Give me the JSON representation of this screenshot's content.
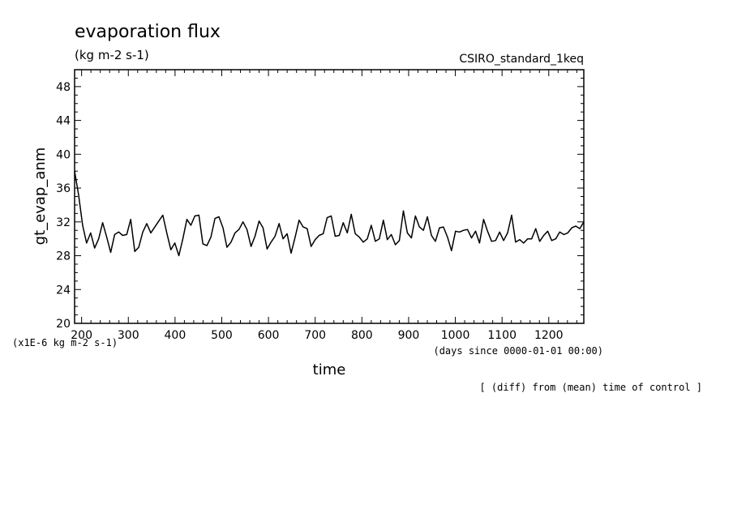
{
  "chart_data": {
    "type": "line",
    "title": "evaporation flux",
    "units": "(kg m-2 s-1)",
    "dataset": "CSIRO_standard_1keq",
    "ylabel": "gt_evap_anm",
    "xlabel": "time",
    "x_units": "(days since 0000-01-01 00:00)",
    "y_scale_note": "(x1E-6 kg m-2 s-1)",
    "note": "[ (diff) from (mean) time of control ]",
    "xlim": [
      185,
      1275
    ],
    "ylim": [
      20,
      50
    ],
    "x_ticks": [
      "200",
      "300",
      "400",
      "500",
      "600",
      "700",
      "800",
      "900",
      "1000",
      "1100",
      "1200"
    ],
    "y_ticks": [
      "20",
      "24",
      "28",
      "32",
      "36",
      "40",
      "44",
      "48"
    ],
    "series": [
      {
        "values": [
          38.0,
          35.2,
          31.6,
          29.5,
          30.7,
          28.9,
          30.0,
          31.9,
          30.2,
          28.4,
          30.5,
          30.8,
          30.4,
          30.5,
          32.3,
          28.5,
          29.0,
          30.8,
          31.8,
          30.7,
          31.4,
          32.1,
          32.8,
          30.7,
          28.7,
          29.5,
          28.0,
          30.0,
          32.3,
          31.6,
          32.7,
          32.8,
          29.4,
          29.2,
          30.2,
          32.4,
          32.6,
          31.3,
          29.0,
          29.6,
          30.7,
          31.1,
          32.0,
          31.1,
          29.1,
          30.3,
          32.1,
          31.3,
          28.8,
          29.6,
          30.3,
          31.8,
          30.0,
          30.6,
          28.3,
          30.2,
          32.2,
          31.4,
          31.2,
          29.1,
          29.9,
          30.4,
          30.6,
          32.5,
          32.7,
          30.3,
          30.4,
          31.9,
          30.7,
          32.9,
          30.6,
          30.2,
          29.6,
          30.0,
          31.6,
          29.7,
          30.0,
          32.2,
          29.9,
          30.5,
          29.3,
          29.8,
          33.3,
          30.7,
          30.1,
          32.7,
          31.4,
          31.0,
          32.6,
          30.4,
          29.7,
          31.3,
          31.4,
          30.2,
          28.6,
          30.9,
          30.8,
          31.0,
          31.1,
          30.1,
          30.9,
          29.5,
          32.3,
          30.9,
          29.7,
          29.8,
          30.8,
          29.8,
          30.7,
          32.8,
          29.6,
          29.9,
          29.5,
          30.0,
          30.0,
          31.2,
          29.7,
          30.4,
          30.9,
          29.8,
          30.0,
          30.8,
          30.5,
          30.7,
          31.3,
          31.5,
          31.2,
          32.0
        ]
      }
    ]
  }
}
